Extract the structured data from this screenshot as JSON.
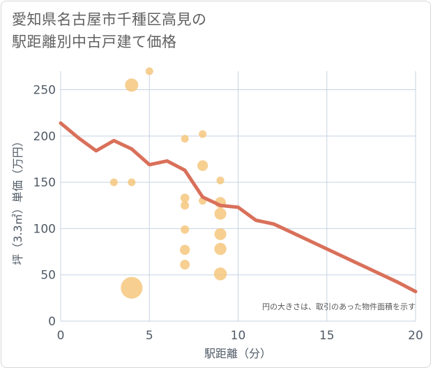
{
  "title_lines": [
    "愛知県名古屋市千種区高見の",
    "駅距離別中古戸建て価格"
  ],
  "chart_data": {
    "type": "scatter+line",
    "xlabel": "駅距離（分）",
    "ylabel": "坪（3.3㎡）単価（万円）",
    "xlim": [
      0,
      20
    ],
    "ylim": [
      0,
      270
    ],
    "xticks": [
      0,
      5,
      10,
      15,
      20
    ],
    "yticks": [
      0,
      50,
      100,
      150,
      200,
      250
    ],
    "annotation": "円の大きさは、取引のあった物件面積を示す",
    "colors": {
      "bubble": "#f5c77e",
      "line": "#d9705a",
      "grid": "#c5d3e2"
    },
    "bubbles": [
      {
        "x": 5,
        "y": 270,
        "size": 1
      },
      {
        "x": 4,
        "y": 255,
        "size": 3
      },
      {
        "x": 3,
        "y": 150,
        "size": 1
      },
      {
        "x": 4,
        "y": 150,
        "size": 1
      },
      {
        "x": 4,
        "y": 36,
        "size": 8
      },
      {
        "x": 7,
        "y": 197,
        "size": 1
      },
      {
        "x": 7,
        "y": 133,
        "size": 1.3
      },
      {
        "x": 7,
        "y": 125,
        "size": 1.2
      },
      {
        "x": 7,
        "y": 99,
        "size": 1.2
      },
      {
        "x": 7,
        "y": 77,
        "size": 1.7
      },
      {
        "x": 7,
        "y": 61,
        "size": 1.6
      },
      {
        "x": 8,
        "y": 202,
        "size": 1
      },
      {
        "x": 8,
        "y": 168,
        "size": 1.9
      },
      {
        "x": 8,
        "y": 130,
        "size": 1
      },
      {
        "x": 9,
        "y": 152,
        "size": 1
      },
      {
        "x": 9,
        "y": 128,
        "size": 2.1
      },
      {
        "x": 9,
        "y": 116,
        "size": 2.4
      },
      {
        "x": 9,
        "y": 94,
        "size": 2.4
      },
      {
        "x": 9,
        "y": 78,
        "size": 2.5
      },
      {
        "x": 9,
        "y": 51,
        "size": 2.8
      }
    ],
    "trend": {
      "x": [
        0,
        1,
        2,
        3,
        4,
        5,
        6,
        7,
        8,
        9,
        10,
        11,
        12,
        13,
        14,
        15,
        16,
        17,
        18,
        19,
        20
      ],
      "y": [
        214,
        198,
        184,
        195,
        186,
        169,
        173,
        163,
        134,
        125,
        123,
        109,
        105,
        96,
        87,
        78,
        69,
        60,
        51,
        42,
        32
      ]
    }
  }
}
